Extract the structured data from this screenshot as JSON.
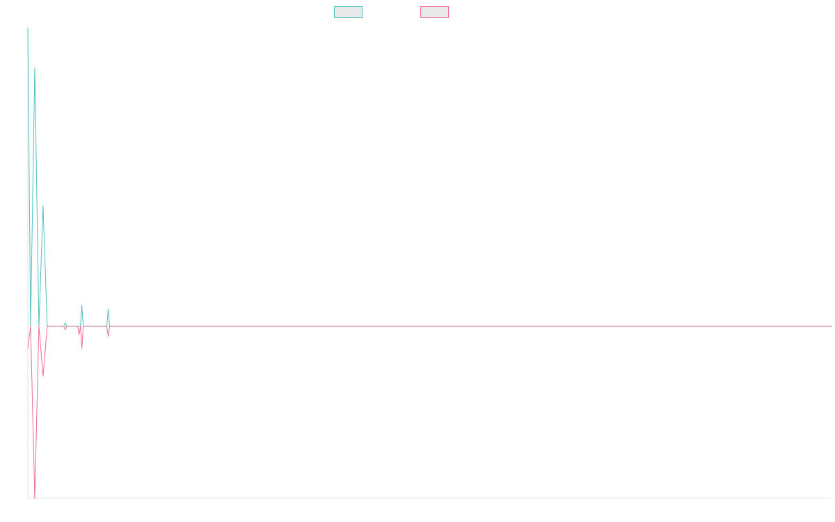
{
  "chart_data": {
    "type": "line",
    "title": "",
    "xlabel": "",
    "ylabel": "",
    "legend_position": "top-center",
    "grid": false,
    "x": [
      0,
      1,
      2,
      3,
      4,
      5,
      6,
      7,
      8,
      9,
      10,
      11,
      12,
      13,
      14,
      15,
      16,
      17,
      18,
      19,
      20,
      21,
      22,
      23,
      24,
      25,
      26,
      27,
      28,
      29,
      30,
      31,
      32,
      33,
      34,
      35,
      36,
      37,
      38,
      39,
      40,
      41,
      42,
      43,
      44,
      45,
      46,
      47,
      48,
      49,
      50,
      51,
      52,
      53,
      54,
      55,
      56,
      57,
      58,
      59,
      60,
      61,
      62,
      63,
      64,
      65,
      66,
      67,
      68,
      69,
      70,
      71,
      72,
      73,
      74,
      75,
      76,
      77,
      78,
      79,
      80,
      81,
      82,
      83,
      84,
      85,
      86,
      87,
      88,
      89,
      90,
      91,
      92,
      93,
      94,
      95,
      96,
      97,
      98,
      99,
      100,
      101,
      102,
      103,
      104,
      105,
      106,
      107,
      108,
      109,
      110,
      111,
      112,
      113,
      114,
      115,
      116,
      117,
      118,
      119,
      120,
      121,
      122,
      123,
      124,
      125,
      126,
      127,
      128,
      129,
      130,
      131,
      132,
      133,
      134,
      135,
      136,
      137,
      138,
      139,
      140,
      141,
      142,
      143,
      144,
      145,
      146,
      147,
      148,
      149,
      150,
      151,
      152,
      153,
      154,
      155,
      156,
      157,
      158,
      159,
      160,
      161,
      162,
      163,
      164,
      165,
      166,
      167,
      168,
      169,
      170,
      171,
      172,
      173,
      174,
      175,
      176,
      177,
      178,
      179,
      180,
      181,
      182,
      183,
      184,
      185,
      186,
      187,
      188,
      189,
      190,
      191,
      192,
      193,
      194,
      195,
      196,
      197,
      198,
      199,
      200,
      201,
      202,
      203,
      204,
      205,
      206,
      207,
      208,
      209,
      210,
      211,
      212,
      213,
      214,
      215,
      216,
      217,
      218,
      219,
      220,
      221,
      222,
      223,
      224,
      225,
      226,
      227,
      228,
      229,
      230,
      231,
      232,
      233,
      234,
      235,
      236,
      237,
      238,
      239,
      240,
      241,
      242,
      243,
      244,
      245,
      246,
      247,
      248,
      249,
      250,
      251,
      252,
      253,
      254,
      255,
      256,
      257,
      258,
      259,
      260,
      261,
      262,
      263,
      264,
      265,
      266,
      267,
      268,
      269,
      270,
      271,
      272,
      273,
      274,
      275,
      276,
      277,
      278,
      279,
      280,
      281,
      282,
      283,
      284,
      285,
      286,
      287,
      288,
      289,
      290,
      291,
      292,
      293,
      294,
      295,
      296,
      297,
      298,
      299,
      300,
      301,
      302,
      303,
      304,
      305,
      306,
      307,
      308,
      309,
      310,
      311,
      312,
      313,
      314,
      315,
      316,
      317,
      318,
      319,
      320,
      321,
      322,
      323,
      324,
      325,
      326,
      327,
      328,
      329,
      330,
      331,
      332,
      333,
      334,
      335,
      336,
      337,
      338,
      339,
      340,
      341,
      342,
      343,
      344,
      345,
      346,
      347,
      348,
      349,
      350,
      351,
      352,
      353,
      354,
      355,
      356,
      357,
      358,
      359,
      360,
      361,
      362,
      363,
      364,
      365,
      366,
      367,
      368,
      369,
      370,
      371,
      372,
      373,
      374,
      375,
      376,
      377,
      378,
      379,
      380,
      381,
      382,
      383,
      384,
      385,
      386,
      387,
      388,
      389,
      390,
      391,
      392,
      393,
      394,
      395,
      396,
      397,
      398,
      399,
      400,
      401,
      402,
      403,
      404,
      405,
      406,
      407,
      408,
      409,
      410,
      411,
      412,
      413,
      414,
      415,
      416,
      417,
      418,
      419,
      420,
      421,
      422,
      423,
      424,
      425,
      426,
      427,
      428,
      429,
      430,
      431,
      432,
      433,
      434,
      435,
      436,
      437,
      438,
      439,
      440,
      441,
      442,
      443,
      444,
      445,
      446,
      447,
      448,
      449,
      450,
      451,
      452,
      453,
      454,
      455,
      456,
      457,
      458,
      459,
      460,
      461,
      462,
      463,
      464,
      465,
      466,
      467,
      468,
      469,
      470,
      471,
      472,
      473,
      474,
      475,
      476,
      477,
      478,
      479,
      480,
      481,
      482,
      483,
      484,
      485,
      486,
      487,
      488,
      489,
      490,
      491,
      492,
      493,
      494,
      495,
      496,
      497,
      498,
      499,
      500,
      501,
      502,
      503,
      504,
      505,
      506,
      507,
      508,
      509,
      510,
      511,
      512,
      513,
      514,
      515,
      516,
      517,
      518,
      519,
      520,
      521,
      522,
      523,
      524,
      525,
      526,
      527,
      528,
      529,
      530,
      531,
      532,
      533,
      534,
      535,
      536,
      537,
      538,
      539,
      540,
      541,
      542,
      543,
      544,
      545,
      546,
      547,
      548,
      549,
      550,
      551,
      552,
      553,
      554,
      555,
      556,
      557,
      558,
      559,
      560,
      561,
      562,
      563,
      564,
      565,
      566,
      567,
      568,
      569,
      570,
      571,
      572,
      573,
      574,
      575,
      576,
      577,
      578,
      579,
      580
    ],
    "xlim": [
      0,
      580
    ],
    "ylim": [
      -100,
      175
    ],
    "series": [
      {
        "color": "#4bc0c0",
        "points": [
          [
            0,
            173
          ],
          [
            2,
            0
          ],
          [
            5,
            150
          ],
          [
            8,
            0
          ],
          [
            11,
            70
          ],
          [
            14,
            0
          ],
          [
            26,
            0
          ],
          [
            27,
            2
          ],
          [
            28,
            0
          ],
          [
            38,
            0
          ],
          [
            39,
            12
          ],
          [
            40,
            0
          ],
          [
            57,
            0
          ],
          [
            58,
            10
          ],
          [
            59,
            0
          ],
          [
            580,
            0
          ]
        ]
      },
      {
        "color": "#f06b8f",
        "points": [
          [
            0,
            -13
          ],
          [
            2,
            0
          ],
          [
            5,
            -100
          ],
          [
            8,
            0
          ],
          [
            11,
            -29
          ],
          [
            14,
            0
          ],
          [
            26,
            0
          ],
          [
            27,
            -2
          ],
          [
            28,
            0
          ],
          [
            36,
            0
          ],
          [
            37,
            -5
          ],
          [
            38,
            0
          ],
          [
            39,
            -13
          ],
          [
            40,
            0
          ],
          [
            57,
            0
          ],
          [
            58,
            -6
          ],
          [
            59,
            0
          ],
          [
            580,
            0
          ]
        ]
      }
    ],
    "legend": {
      "swatch_fill": "#e8e8e8"
    },
    "axis_color": "#e6e6e6"
  }
}
